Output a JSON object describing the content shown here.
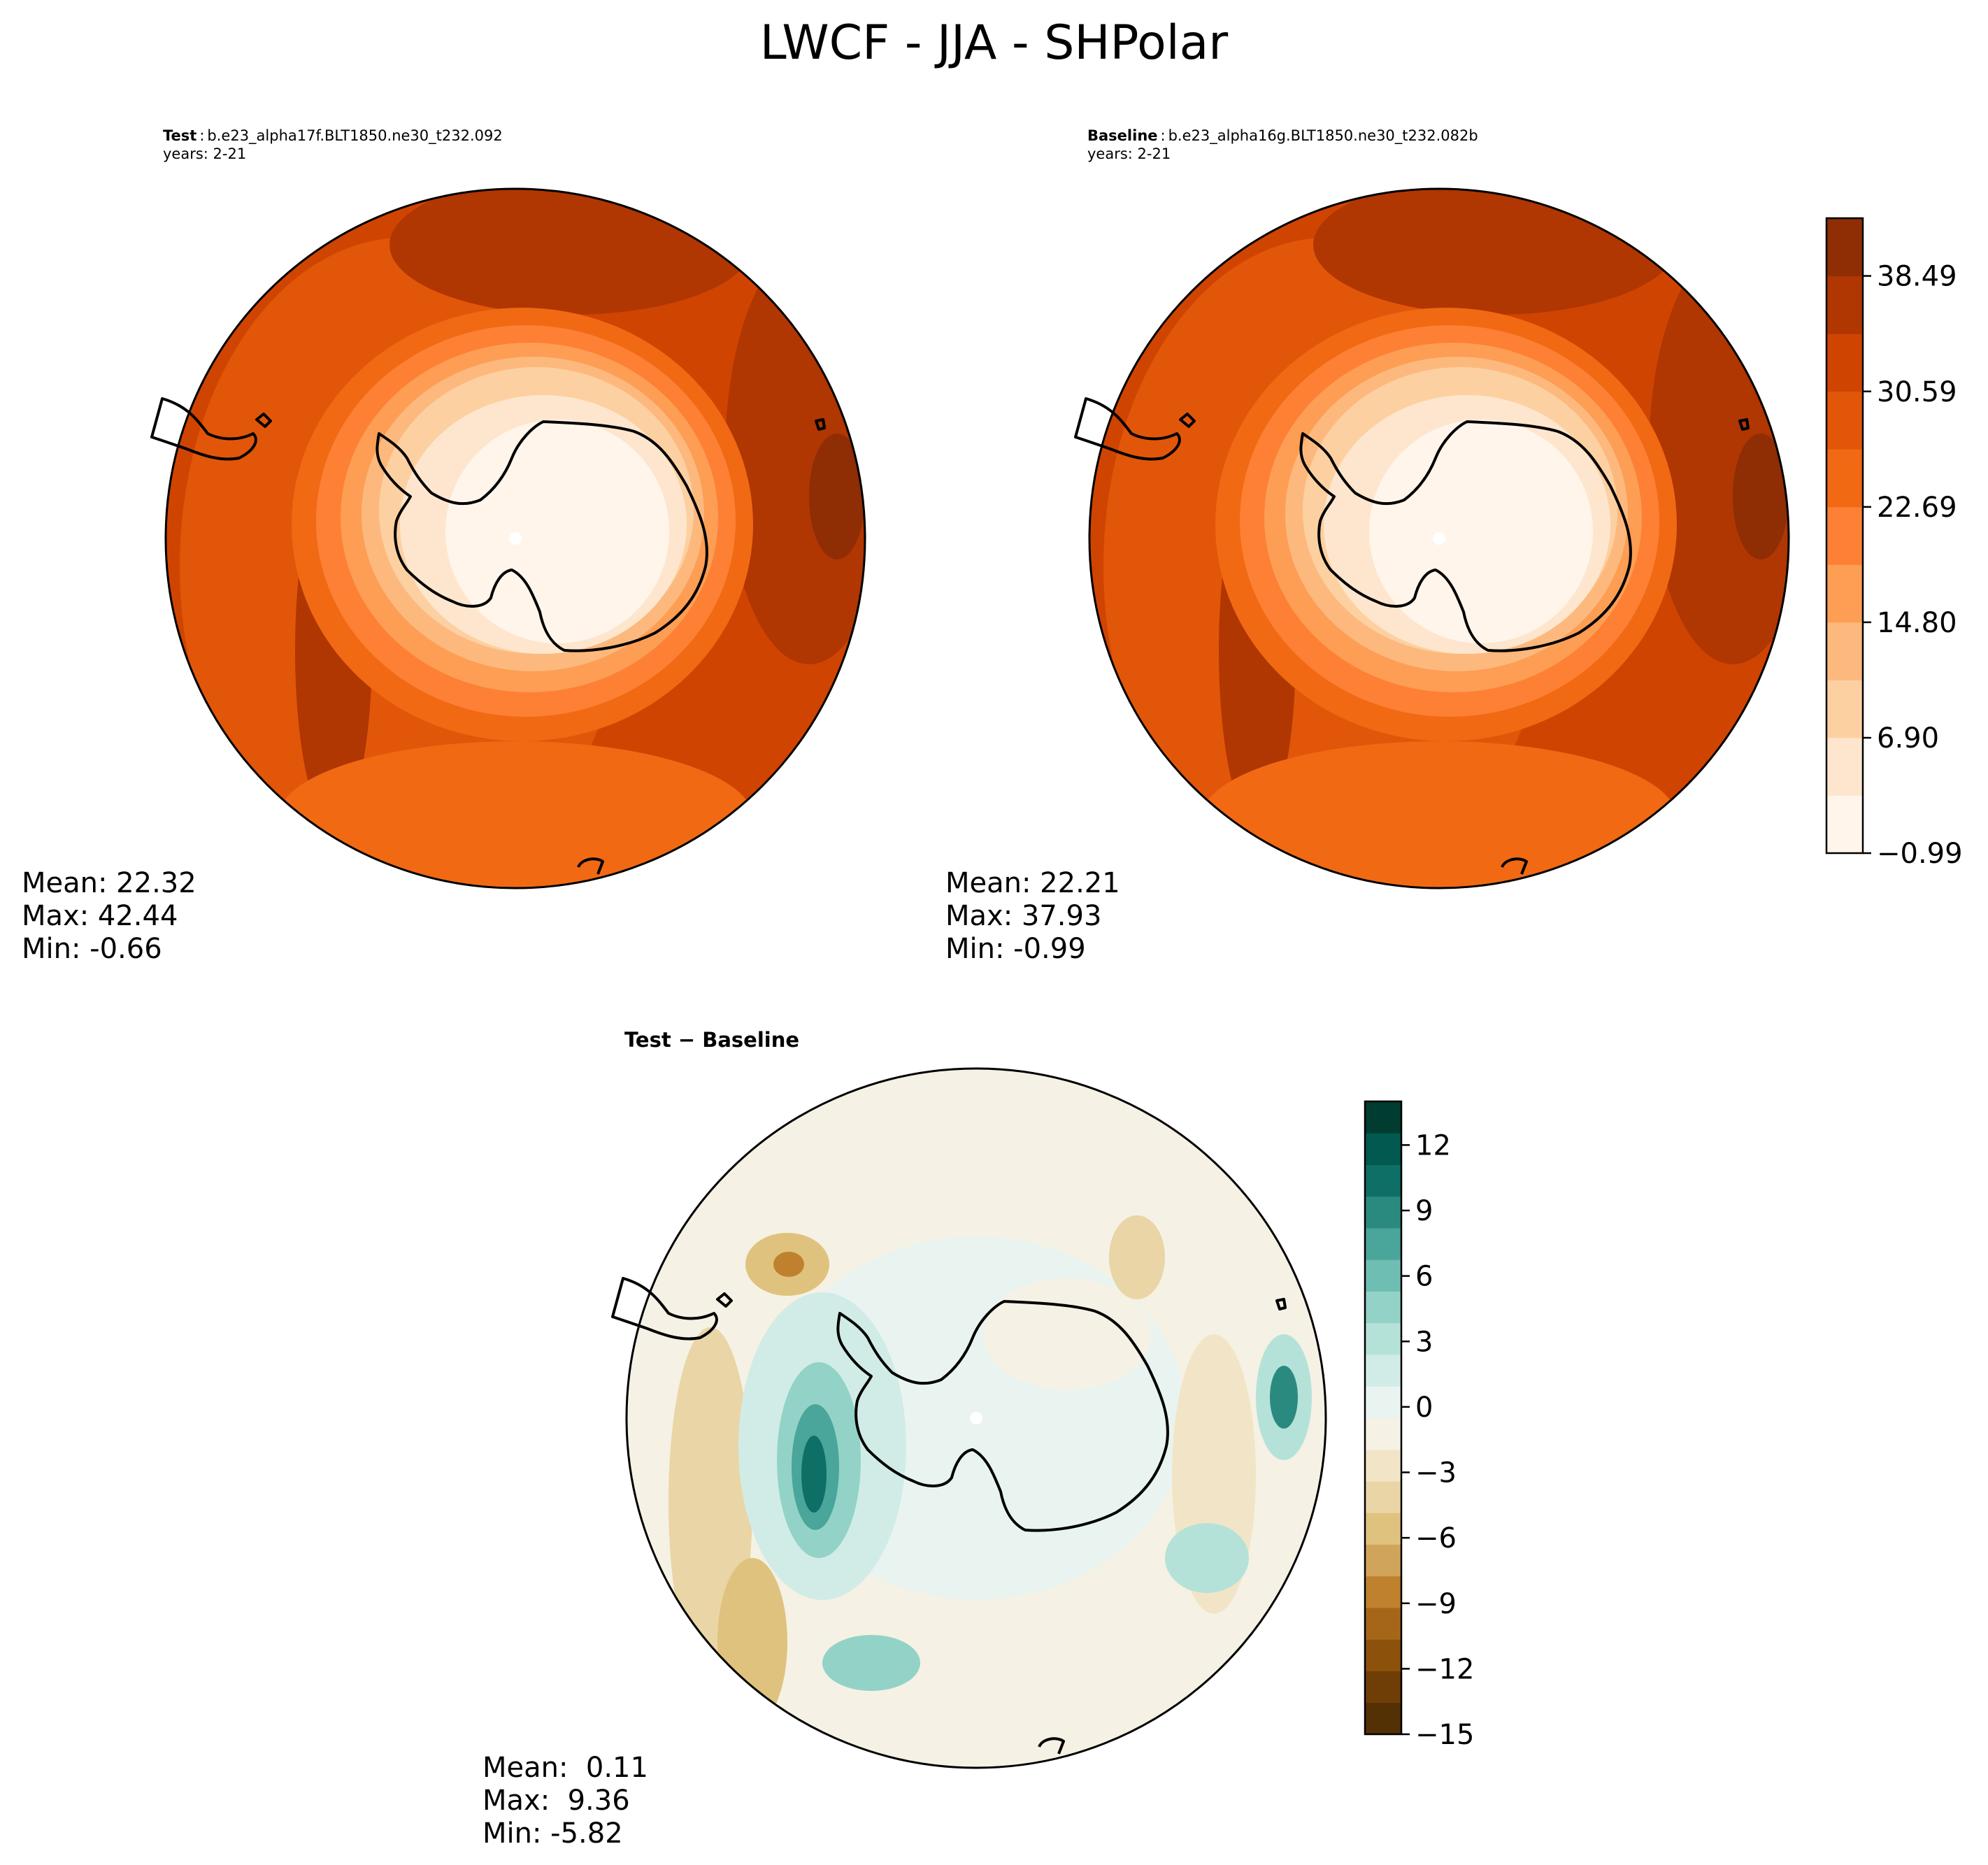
{
  "figure": {
    "title": "LWCF - JJA - SHPolar"
  },
  "panels": {
    "test": {
      "label": "Test",
      "case": "b.e23_alpha17f.BLT1850.ne30_t232.092",
      "years": "years: 2-21",
      "mean": "Mean: 22.32",
      "max": "Max: 42.44",
      "min": "Min: -0.66"
    },
    "baseline": {
      "label": "Baseline",
      "case": "b.e23_alpha16g.BLT1850.ne30_t232.082b",
      "years": "years: 2-21",
      "mean": "Mean: 22.21",
      "max": "Max: 37.93",
      "min": "Min: -0.99"
    },
    "diff": {
      "label": "Test − Baseline",
      "mean": "Mean:  0.11",
      "max": "Max:  9.36",
      "min": "Min: -5.82"
    }
  },
  "chart_data": [
    {
      "type": "heatmap",
      "projection": "south polar stereographic",
      "panel": "test",
      "stats": {
        "mean": 22.32,
        "max": 42.44,
        "min": -0.66
      },
      "colorbar": {
        "shared_with": "baseline",
        "colormap": "oranges",
        "range": [
          -0.99,
          42.44
        ],
        "ticks": [
          -0.99,
          6.9,
          14.8,
          22.69,
          30.59,
          38.49
        ],
        "tick_labels": [
          "−0.99",
          "6.90",
          "14.80",
          "22.69",
          "30.59",
          "38.49"
        ],
        "colors": [
          "#fff5eb",
          "#fee6ce",
          "#fdd0a2",
          "#fdb97d",
          "#fd9e54",
          "#fd8035",
          "#f16913",
          "#e25609",
          "#d04401",
          "#b03602",
          "#8f2d04"
        ]
      },
      "pattern": "near 0 over Antarctica rising to ~30-40 over the surrounding Southern Ocean"
    },
    {
      "type": "heatmap",
      "projection": "south polar stereographic",
      "panel": "baseline",
      "stats": {
        "mean": 22.21,
        "max": 37.93,
        "min": -0.99
      }
    },
    {
      "type": "heatmap",
      "projection": "south polar stereographic",
      "panel": "diff",
      "stats": {
        "mean": 0.11,
        "max": 9.36,
        "min": -5.82
      },
      "colorbar": {
        "colormap": "BrBG",
        "range": [
          -15,
          14
        ],
        "ticks": [
          -15,
          -12,
          -9,
          -6,
          -3,
          0,
          3,
          6,
          9,
          12
        ],
        "tick_labels": [
          "−15",
          "−12",
          "−9",
          "−6",
          "−3",
          "0",
          "3",
          "6",
          "9",
          "12"
        ],
        "colors": [
          "#543005",
          "#6f3e07",
          "#8c510a",
          "#a6661a",
          "#bf812d",
          "#d0a45a",
          "#dfc27d",
          "#ead5a6",
          "#f2e5c7",
          "#f5f1e4",
          "#e9f4f1",
          "#d1ece6",
          "#b5e2d8",
          "#93d3c7",
          "#6fbeb3",
          "#4aa59b",
          "#2a8a80",
          "#0e6f66",
          "#01594f",
          "#003c30"
        ]
      }
    }
  ]
}
